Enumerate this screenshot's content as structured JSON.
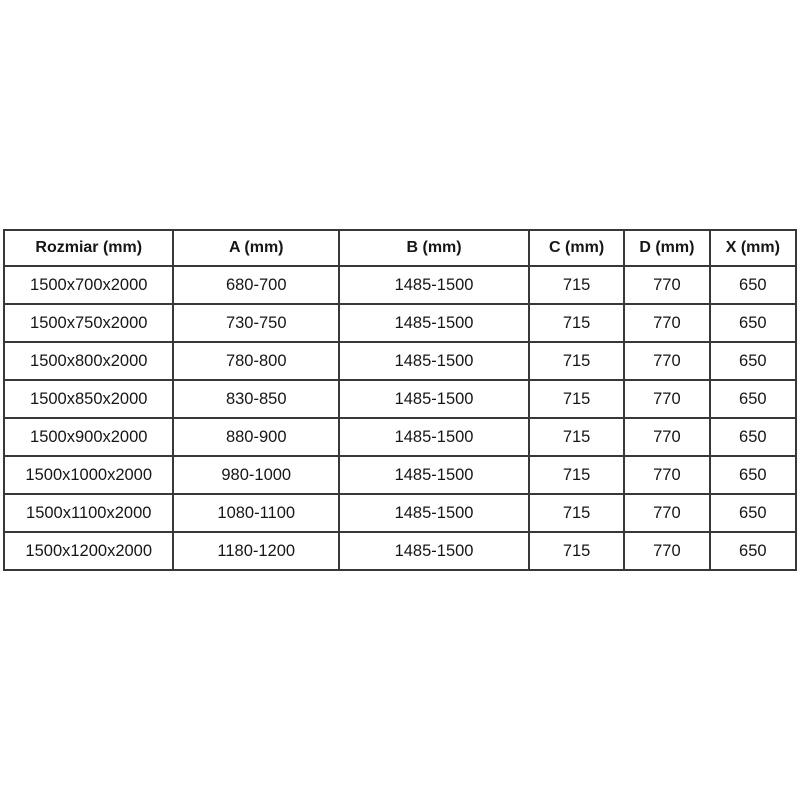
{
  "table": {
    "title_semantic": "shower-enclosure-dimensions",
    "headers": [
      "Rozmiar (mm)",
      "A (mm)",
      "B (mm)",
      "C (mm)",
      "D (mm)",
      "X (mm)"
    ],
    "rows": [
      [
        "1500x700x2000",
        "680-700",
        "1485-1500",
        "715",
        "770",
        "650"
      ],
      [
        "1500x750x2000",
        "730-750",
        "1485-1500",
        "715",
        "770",
        "650"
      ],
      [
        "1500x800x2000",
        "780-800",
        "1485-1500",
        "715",
        "770",
        "650"
      ],
      [
        "1500x850x2000",
        "830-850",
        "1485-1500",
        "715",
        "770",
        "650"
      ],
      [
        "1500x900x2000",
        "880-900",
        "1485-1500",
        "715",
        "770",
        "650"
      ],
      [
        "1500x1000x2000",
        "980-1000",
        "1485-1500",
        "715",
        "770",
        "650"
      ],
      [
        "1500x1100x2000",
        "1080-1100",
        "1485-1500",
        "715",
        "770",
        "650"
      ],
      [
        "1500x1200x2000",
        "1180-1200",
        "1485-1500",
        "715",
        "770",
        "650"
      ]
    ],
    "colors": {
      "border": "#383838",
      "text": "#161616",
      "background": "#ffffff"
    }
  }
}
